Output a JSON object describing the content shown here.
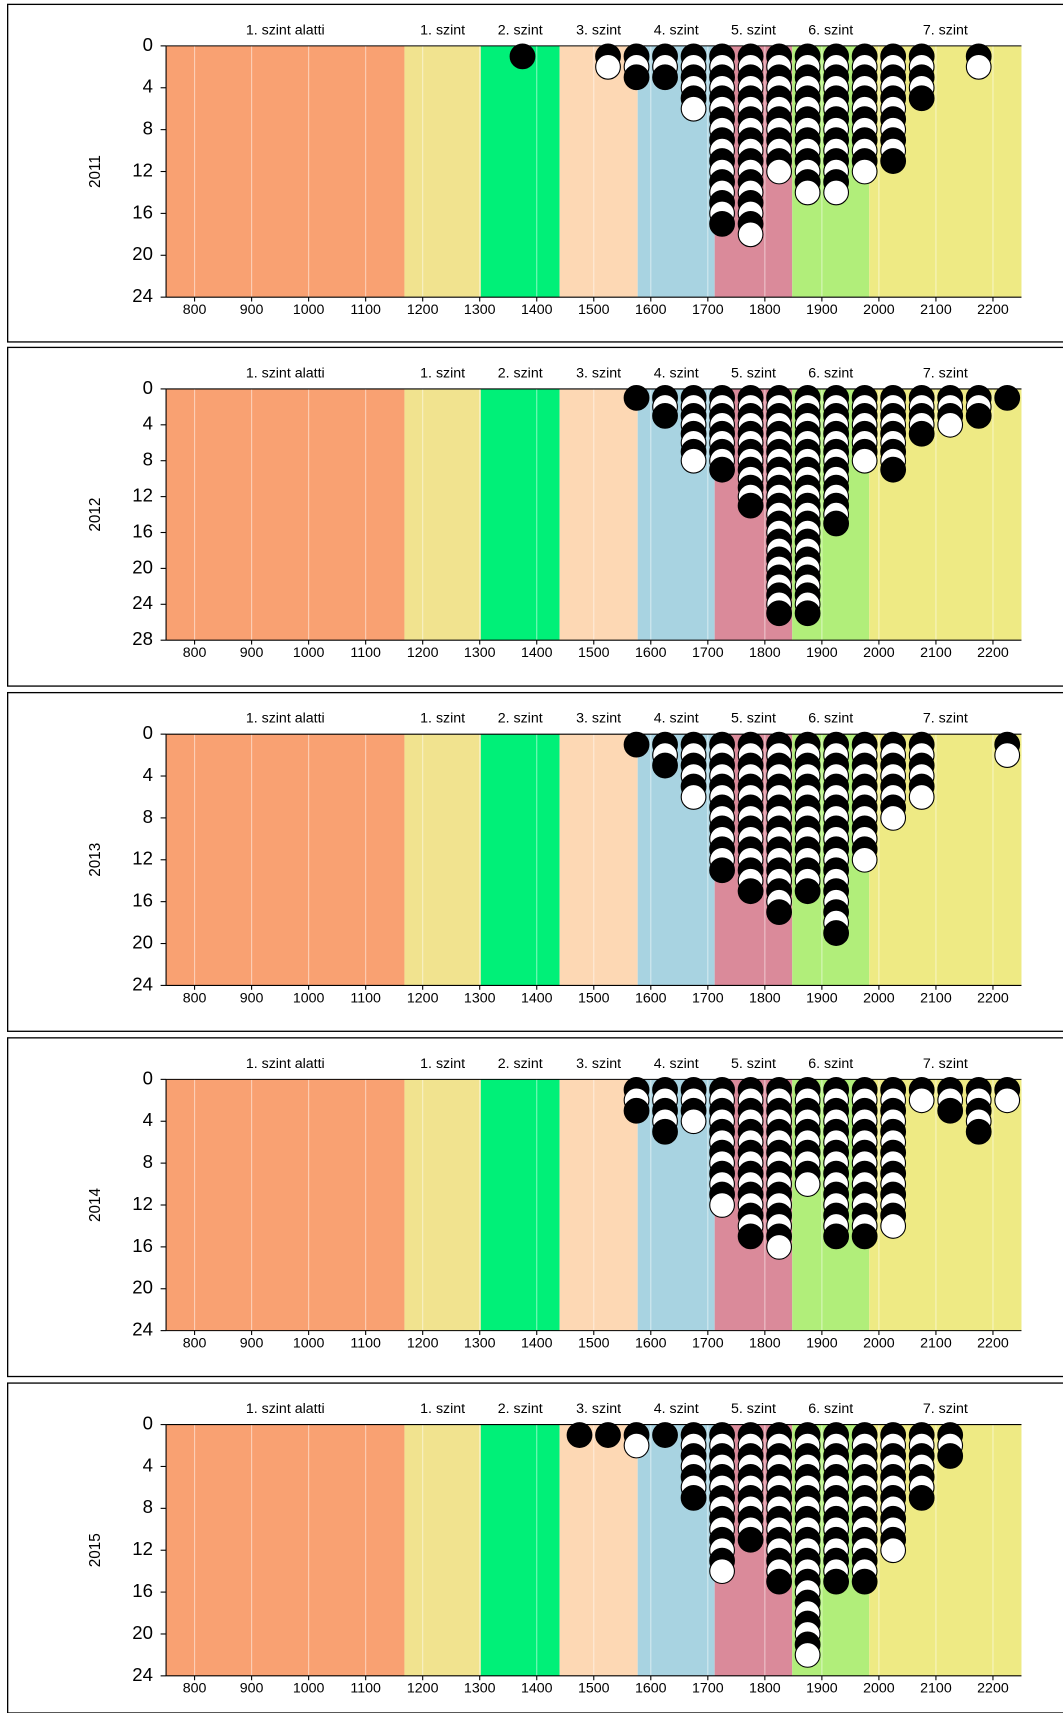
{
  "chart_data": [
    {
      "type": "dot",
      "ylabel": "2011",
      "x": [
        1375,
        1425,
        1475,
        1525,
        1575,
        1625,
        1675,
        1725,
        1775,
        1825,
        1875,
        1925,
        1975,
        2025,
        2075,
        2125,
        2175,
        2225
      ],
      "values": [
        1,
        0,
        0,
        2,
        3,
        3,
        6,
        17,
        18,
        12,
        14,
        14,
        12,
        11,
        5,
        0,
        2,
        0
      ],
      "xlim": [
        750,
        2250
      ],
      "xticks": [
        800,
        900,
        1000,
        1100,
        1200,
        1300,
        1400,
        1500,
        1600,
        1700,
        1800,
        1900,
        2000,
        2100,
        2200
      ],
      "ylim": [
        0,
        24
      ],
      "yticks": [
        0,
        4,
        8,
        12,
        16,
        20,
        24
      ],
      "bands": [
        {
          "label": "1. szint alatti",
          "start": 750,
          "end": 1168,
          "color": "#f9a172"
        },
        {
          "label": "1. szint",
          "start": 1168,
          "end": 1302,
          "color": "#f1e38f"
        },
        {
          "label": "2. szint",
          "start": 1302,
          "end": 1440,
          "color": "#00f078"
        },
        {
          "label": "3. szint",
          "start": 1440,
          "end": 1577,
          "color": "#fdd8b4"
        },
        {
          "label": "4. szint",
          "start": 1577,
          "end": 1712,
          "color": "#a8d3e1"
        },
        {
          "label": "5. szint",
          "start": 1712,
          "end": 1848,
          "color": "#da8a9a"
        },
        {
          "label": "6. szint",
          "start": 1848,
          "end": 1983,
          "color": "#b1ee7a"
        },
        {
          "label": "7. szint",
          "start": 1983,
          "end": 2250,
          "color": "#eeea84"
        }
      ]
    },
    {
      "type": "dot",
      "ylabel": "2012",
      "x": [
        1375,
        1425,
        1475,
        1525,
        1575,
        1625,
        1675,
        1725,
        1775,
        1825,
        1875,
        1925,
        1975,
        2025,
        2075,
        2125,
        2175,
        2225
      ],
      "values": [
        0,
        0,
        0,
        0,
        1,
        3,
        8,
        9,
        13,
        25,
        25,
        15,
        8,
        9,
        5,
        4,
        3,
        1
      ],
      "xlim": [
        750,
        2250
      ],
      "xticks": [
        800,
        900,
        1000,
        1100,
        1200,
        1300,
        1400,
        1500,
        1600,
        1700,
        1800,
        1900,
        2000,
        2100,
        2200
      ],
      "ylim": [
        0,
        28
      ],
      "yticks": [
        0,
        4,
        8,
        12,
        16,
        20,
        24,
        28
      ],
      "bands": [
        {
          "label": "1. szint alatti",
          "start": 750,
          "end": 1168,
          "color": "#f9a172"
        },
        {
          "label": "1. szint",
          "start": 1168,
          "end": 1302,
          "color": "#f1e38f"
        },
        {
          "label": "2. szint",
          "start": 1302,
          "end": 1440,
          "color": "#00f078"
        },
        {
          "label": "3. szint",
          "start": 1440,
          "end": 1577,
          "color": "#fdd8b4"
        },
        {
          "label": "4. szint",
          "start": 1577,
          "end": 1712,
          "color": "#a8d3e1"
        },
        {
          "label": "5. szint",
          "start": 1712,
          "end": 1848,
          "color": "#da8a9a"
        },
        {
          "label": "6. szint",
          "start": 1848,
          "end": 1983,
          "color": "#b1ee7a"
        },
        {
          "label": "7. szint",
          "start": 1983,
          "end": 2250,
          "color": "#eeea84"
        }
      ]
    },
    {
      "type": "dot",
      "ylabel": "2013",
      "x": [
        1375,
        1425,
        1475,
        1525,
        1575,
        1625,
        1675,
        1725,
        1775,
        1825,
        1875,
        1925,
        1975,
        2025,
        2075,
        2125,
        2175,
        2225
      ],
      "values": [
        0,
        0,
        0,
        0,
        1,
        3,
        6,
        13,
        15,
        17,
        15,
        19,
        12,
        8,
        6,
        0,
        0,
        2
      ],
      "xlim": [
        750,
        2250
      ],
      "xticks": [
        800,
        900,
        1000,
        1100,
        1200,
        1300,
        1400,
        1500,
        1600,
        1700,
        1800,
        1900,
        2000,
        2100,
        2200
      ],
      "ylim": [
        0,
        24
      ],
      "yticks": [
        0,
        4,
        8,
        12,
        16,
        20,
        24
      ],
      "bands": [
        {
          "label": "1. szint alatti",
          "start": 750,
          "end": 1168,
          "color": "#f9a172"
        },
        {
          "label": "1. szint",
          "start": 1168,
          "end": 1302,
          "color": "#f1e38f"
        },
        {
          "label": "2. szint",
          "start": 1302,
          "end": 1440,
          "color": "#00f078"
        },
        {
          "label": "3. szint",
          "start": 1440,
          "end": 1577,
          "color": "#fdd8b4"
        },
        {
          "label": "4. szint",
          "start": 1577,
          "end": 1712,
          "color": "#a8d3e1"
        },
        {
          "label": "5. szint",
          "start": 1712,
          "end": 1848,
          "color": "#da8a9a"
        },
        {
          "label": "6. szint",
          "start": 1848,
          "end": 1983,
          "color": "#b1ee7a"
        },
        {
          "label": "7. szint",
          "start": 1983,
          "end": 2250,
          "color": "#eeea84"
        }
      ]
    },
    {
      "type": "dot",
      "ylabel": "2014",
      "x": [
        1375,
        1425,
        1475,
        1525,
        1575,
        1625,
        1675,
        1725,
        1775,
        1825,
        1875,
        1925,
        1975,
        2025,
        2075,
        2125,
        2175,
        2225
      ],
      "values": [
        0,
        0,
        0,
        0,
        3,
        5,
        4,
        12,
        15,
        16,
        10,
        15,
        15,
        14,
        2,
        3,
        5,
        2
      ],
      "xlim": [
        750,
        2250
      ],
      "xticks": [
        800,
        900,
        1000,
        1100,
        1200,
        1300,
        1400,
        1500,
        1600,
        1700,
        1800,
        1900,
        2000,
        2100,
        2200
      ],
      "ylim": [
        0,
        24
      ],
      "yticks": [
        0,
        4,
        8,
        12,
        16,
        20,
        24
      ],
      "bands": [
        {
          "label": "1. szint alatti",
          "start": 750,
          "end": 1168,
          "color": "#f9a172"
        },
        {
          "label": "1. szint",
          "start": 1168,
          "end": 1302,
          "color": "#f1e38f"
        },
        {
          "label": "2. szint",
          "start": 1302,
          "end": 1440,
          "color": "#00f078"
        },
        {
          "label": "3. szint",
          "start": 1440,
          "end": 1577,
          "color": "#fdd8b4"
        },
        {
          "label": "4. szint",
          "start": 1577,
          "end": 1712,
          "color": "#a8d3e1"
        },
        {
          "label": "5. szint",
          "start": 1712,
          "end": 1848,
          "color": "#da8a9a"
        },
        {
          "label": "6. szint",
          "start": 1848,
          "end": 1983,
          "color": "#b1ee7a"
        },
        {
          "label": "7. szint",
          "start": 1983,
          "end": 2250,
          "color": "#eeea84"
        }
      ]
    },
    {
      "type": "dot",
      "ylabel": "2015",
      "x": [
        1375,
        1425,
        1475,
        1525,
        1575,
        1625,
        1675,
        1725,
        1775,
        1825,
        1875,
        1925,
        1975,
        2025,
        2075,
        2125,
        2175,
        2225
      ],
      "values": [
        0,
        0,
        1,
        1,
        2,
        1,
        7,
        14,
        11,
        15,
        22,
        15,
        15,
        12,
        7,
        3,
        0,
        0
      ],
      "xlim": [
        750,
        2250
      ],
      "xticks": [
        800,
        900,
        1000,
        1100,
        1200,
        1300,
        1400,
        1500,
        1600,
        1700,
        1800,
        1900,
        2000,
        2100,
        2200
      ],
      "ylim": [
        0,
        24
      ],
      "yticks": [
        0,
        4,
        8,
        12,
        16,
        20,
        24
      ],
      "bands": [
        {
          "label": "1. szint alatti",
          "start": 750,
          "end": 1168,
          "color": "#f9a172"
        },
        {
          "label": "1. szint",
          "start": 1168,
          "end": 1302,
          "color": "#f1e38f"
        },
        {
          "label": "2. szint",
          "start": 1302,
          "end": 1440,
          "color": "#00f078"
        },
        {
          "label": "3. szint",
          "start": 1440,
          "end": 1577,
          "color": "#fdd8b4"
        },
        {
          "label": "4. szint",
          "start": 1577,
          "end": 1712,
          "color": "#a8d3e1"
        },
        {
          "label": "5. szint",
          "start": 1712,
          "end": 1848,
          "color": "#da8a9a"
        },
        {
          "label": "6. szint",
          "start": 1848,
          "end": 1983,
          "color": "#b1ee7a"
        },
        {
          "label": "7. szint",
          "start": 1983,
          "end": 2250,
          "color": "#eeea84"
        }
      ]
    }
  ]
}
